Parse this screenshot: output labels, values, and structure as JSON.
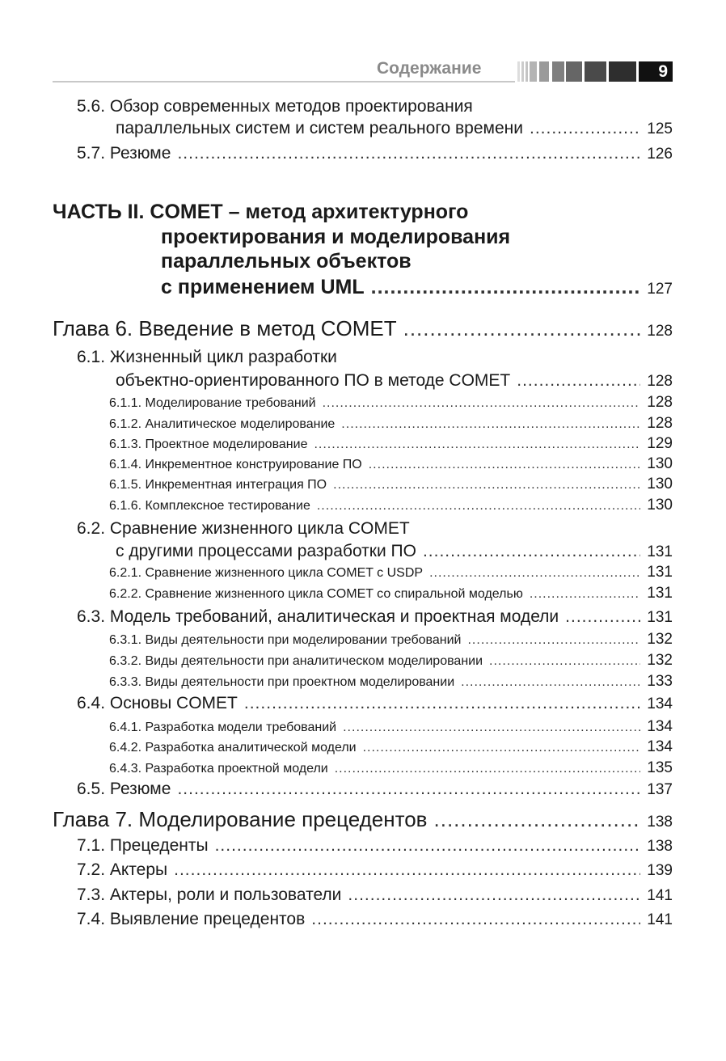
{
  "header": {
    "section_title": "Содержание",
    "page_number": "9"
  },
  "toc": [
    {
      "level": "l1",
      "lines": [
        "5.6. Обзор современных методов проектирования",
        "параллельных систем и систем реального времени"
      ],
      "page": "125"
    },
    {
      "level": "l1",
      "lines": [
        "5.7. Резюме"
      ],
      "page": "126"
    },
    {
      "level": "part",
      "lines": [
        "ЧАСТЬ II. COMET – метод архитектурного",
        "проектирования и моделирования",
        "параллельных объектов",
        "с применением UML"
      ],
      "page": "127"
    },
    {
      "level": "ch",
      "lines": [
        "Глава 6. Введение в метод COMET"
      ],
      "page": "128"
    },
    {
      "level": "l1",
      "lines": [
        "6.1. Жизненный цикл разработки",
        "объектно-ориентированного ПО в методе COMET"
      ],
      "page": "128"
    },
    {
      "level": "l2",
      "lines": [
        "6.1.1. Моделирование требований"
      ],
      "page": "128"
    },
    {
      "level": "l2",
      "lines": [
        "6.1.2. Аналитическое моделирование"
      ],
      "page": "128"
    },
    {
      "level": "l2",
      "lines": [
        "6.1.3. Проектное моделирование"
      ],
      "page": "129"
    },
    {
      "level": "l2",
      "lines": [
        "6.1.4. Инкрементное конструирование ПО"
      ],
      "page": "130"
    },
    {
      "level": "l2",
      "lines": [
        "6.1.5. Инкрементная интеграция ПО"
      ],
      "page": "130"
    },
    {
      "level": "l2",
      "lines": [
        "6.1.6. Комплексное тестирование"
      ],
      "page": "130"
    },
    {
      "level": "l1",
      "lines": [
        "6.2. Сравнение жизненного цикла COMET",
        "с другими процессами разработки ПО"
      ],
      "page": "131"
    },
    {
      "level": "l2",
      "lines": [
        "6.2.1. Сравнение жизненного цикла COMET с USDP"
      ],
      "page": "131"
    },
    {
      "level": "l2",
      "lines": [
        "6.2.2. Сравнение жизненного цикла COMET со спиральной моделью"
      ],
      "page": "131"
    },
    {
      "level": "l1",
      "lines": [
        "6.3. Модель требований, аналитическая и проектная модели"
      ],
      "page": "131"
    },
    {
      "level": "l2",
      "lines": [
        "6.3.1. Виды деятельности при моделировании требований"
      ],
      "page": "132"
    },
    {
      "level": "l2",
      "lines": [
        "6.3.2. Виды деятельности при аналитическом моделировании"
      ],
      "page": "132"
    },
    {
      "level": "l2",
      "lines": [
        "6.3.3. Виды деятельности при проектном моделировании"
      ],
      "page": "133"
    },
    {
      "level": "l1",
      "lines": [
        "6.4. Основы COMET"
      ],
      "page": "134"
    },
    {
      "level": "l2",
      "lines": [
        "6.4.1. Разработка модели требований"
      ],
      "page": "134"
    },
    {
      "level": "l2",
      "lines": [
        "6.4.2. Разработка аналитической модели"
      ],
      "page": "134"
    },
    {
      "level": "l2",
      "lines": [
        "6.4.3. Разработка проектной модели"
      ],
      "page": "135"
    },
    {
      "level": "l1",
      "lines": [
        "6.5. Резюме"
      ],
      "page": "137"
    },
    {
      "level": "ch",
      "lines": [
        "Глава 7. Моделирование прецедентов"
      ],
      "page": "138"
    },
    {
      "level": "l1",
      "lines": [
        "7.1. Прецеденты"
      ],
      "page": "138"
    },
    {
      "level": "l1",
      "lines": [
        "7.2. Актеры"
      ],
      "page": "139"
    },
    {
      "level": "l1",
      "lines": [
        "7.3. Актеры, роли и пользователи"
      ],
      "page": "141"
    },
    {
      "level": "l1",
      "lines": [
        "7.4. Выявление прецедентов"
      ],
      "page": "141"
    }
  ]
}
